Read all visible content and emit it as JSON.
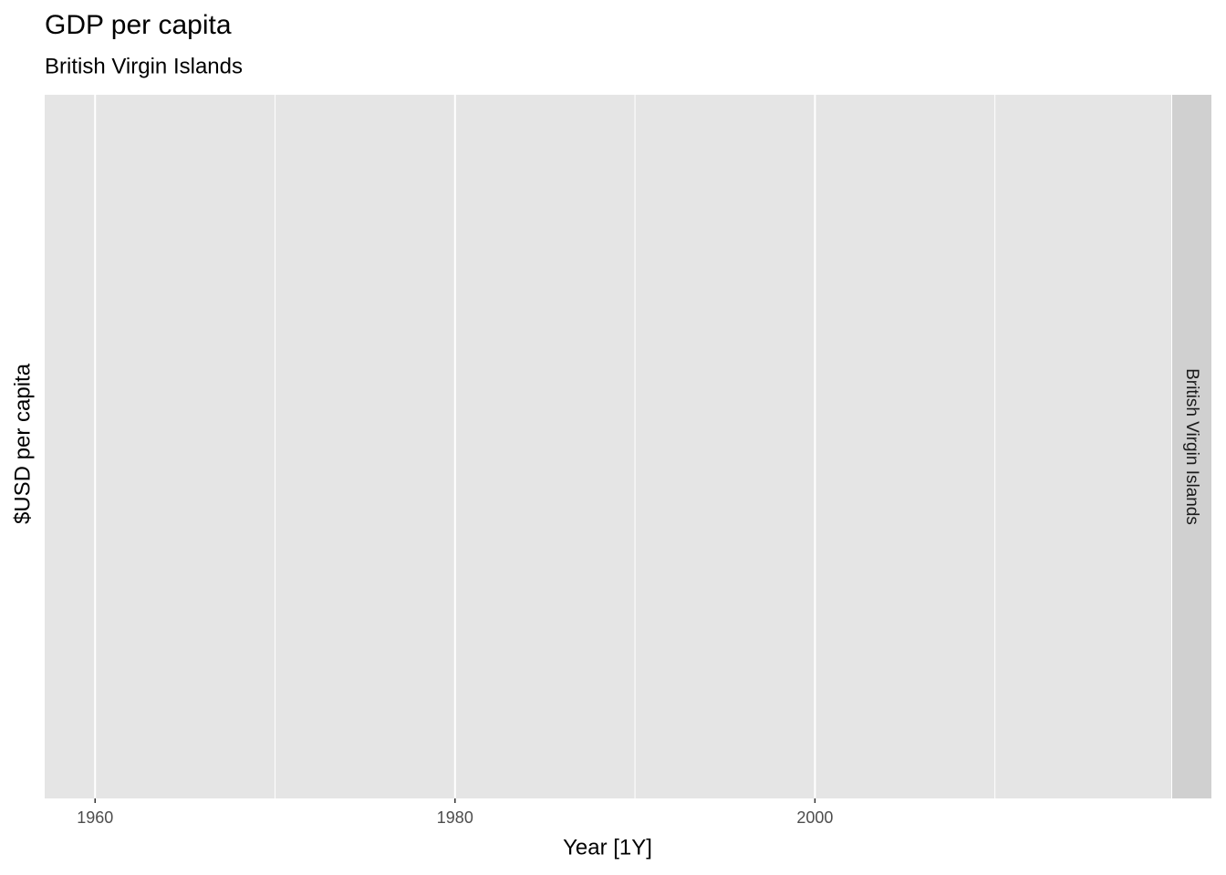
{
  "chart_data": {
    "type": "line",
    "title": "GDP per capita",
    "subtitle": "British Virgin Islands",
    "x_label": "Year [1Y]",
    "y_label": "$USD per capita",
    "facet_label": "British Virgin Islands",
    "x": [],
    "values": [],
    "xlim": [
      1957.2,
      2019.8
    ],
    "xticks": [
      1960,
      1980,
      2000
    ],
    "xminorticks": [
      1970,
      1990,
      2010
    ],
    "grid": true
  }
}
